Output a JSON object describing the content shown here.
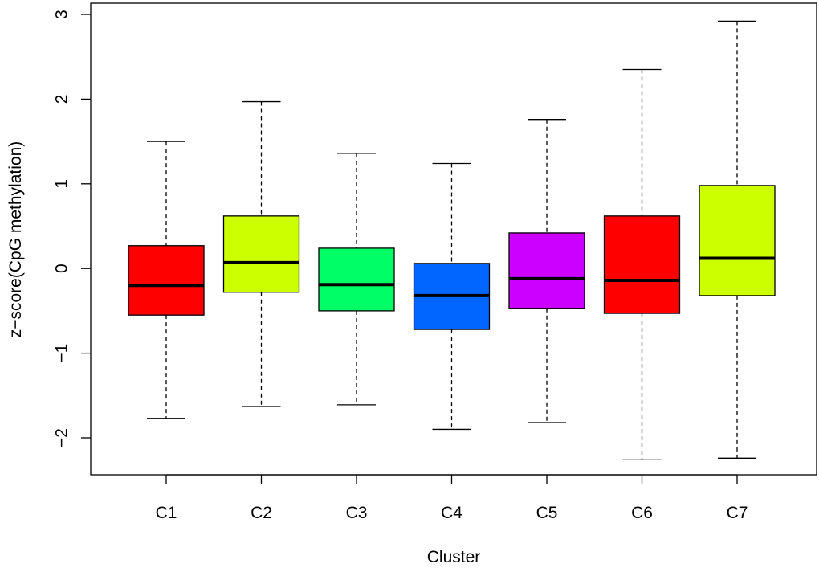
{
  "chart_data": {
    "type": "boxplot",
    "xlabel": "Cluster",
    "ylabel": "z−score(CpG methylation)",
    "ylim": [
      -2.45,
      3.0
    ],
    "y_ticks": [
      -2,
      -1,
      0,
      1,
      2,
      3
    ],
    "y_tick_labels": [
      "−2",
      "−1",
      "0",
      "1",
      "2",
      "3"
    ],
    "categories": [
      "C1",
      "C2",
      "C3",
      "C4",
      "C5",
      "C6",
      "C7"
    ],
    "boxes": [
      {
        "name": "C1",
        "min": -1.77,
        "q1": -0.55,
        "median": -0.2,
        "q3": 0.27,
        "max": 1.5,
        "color": "#ff0000"
      },
      {
        "name": "C2",
        "min": -1.63,
        "q1": -0.28,
        "median": 0.07,
        "q3": 0.62,
        "max": 1.97,
        "color": "#ccff00"
      },
      {
        "name": "C3",
        "min": -1.61,
        "q1": -0.5,
        "median": -0.19,
        "q3": 0.24,
        "max": 1.36,
        "color": "#00ff66"
      },
      {
        "name": "C4",
        "min": -1.9,
        "q1": -0.72,
        "median": -0.32,
        "q3": 0.06,
        "max": 1.24,
        "color": "#0066ff"
      },
      {
        "name": "C5",
        "min": -1.82,
        "q1": -0.47,
        "median": -0.12,
        "q3": 0.42,
        "max": 1.76,
        "color": "#cc00ff"
      },
      {
        "name": "C6",
        "min": -2.26,
        "q1": -0.53,
        "median": -0.14,
        "q3": 0.62,
        "max": 2.35,
        "color": "#ff0000"
      },
      {
        "name": "C7",
        "min": -2.24,
        "q1": -0.32,
        "median": 0.12,
        "q3": 0.98,
        "max": 2.92,
        "color": "#ccff00"
      }
    ]
  }
}
